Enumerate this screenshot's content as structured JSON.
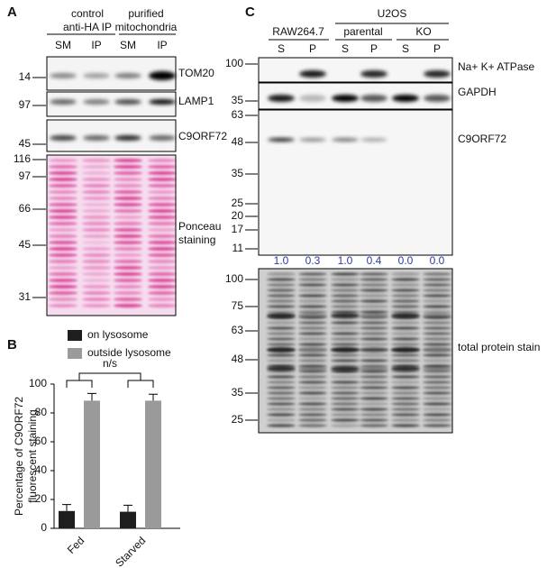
{
  "panel_a": {
    "label": "A",
    "groups": [
      {
        "lines": [
          "control",
          "anti-HA IP"
        ]
      },
      {
        "lines": [
          "purified",
          "mitochondria"
        ]
      }
    ],
    "lanes": [
      "SM",
      "IP",
      "SM",
      "IP"
    ],
    "blots": [
      {
        "name": [
          "TOM20"
        ],
        "markers": [
          14
        ]
      },
      {
        "name": [
          "LAMP1"
        ],
        "markers": [
          97
        ]
      },
      {
        "name": [
          "C9ORF72"
        ],
        "markers": [
          45
        ]
      },
      {
        "name": [
          "Ponceau",
          "staining"
        ],
        "markers": [
          116,
          97,
          66,
          45,
          31
        ]
      }
    ]
  },
  "chart_data": {
    "type": "bar",
    "panel_label": "B",
    "y_label": [
      "Percentage of C9ORF72",
      "fluorescent staining"
    ],
    "categories": [
      "Fed",
      "Starved"
    ],
    "series": [
      {
        "name": "on lysosome",
        "color": "#1e1e1e",
        "values": [
          12,
          11.5
        ],
        "errors": [
          4.5,
          4.5
        ]
      },
      {
        "name": "outside lysosome",
        "color": "#9a9a9a",
        "values": [
          88.5,
          88.5
        ],
        "errors": [
          5,
          4.5
        ]
      }
    ],
    "annotation": "n/s",
    "ylim": [
      0,
      100
    ],
    "yticks": [
      0,
      20,
      40,
      60,
      80,
      100
    ]
  },
  "panel_c": {
    "label": "C",
    "top_group": "U2OS",
    "groups": [
      "RAW264.7",
      "parental",
      "KO"
    ],
    "lanes": [
      "S",
      "P",
      "S",
      "P",
      "S",
      "P"
    ],
    "blots": [
      {
        "name": "Na+ K+ ATPase",
        "markers": [
          100
        ]
      },
      {
        "name": "GAPDH",
        "markers": [
          35
        ]
      },
      {
        "name": "C9ORF72",
        "markers": [
          63,
          48,
          35,
          25,
          20,
          17,
          11
        ]
      },
      {
        "name": "total protein stain",
        "markers": [
          100,
          75,
          63,
          48,
          35,
          25
        ]
      }
    ],
    "quantification": [
      "1.0",
      "0.3",
      "1.0",
      "0.4",
      "0.0",
      "0.0"
    ]
  }
}
